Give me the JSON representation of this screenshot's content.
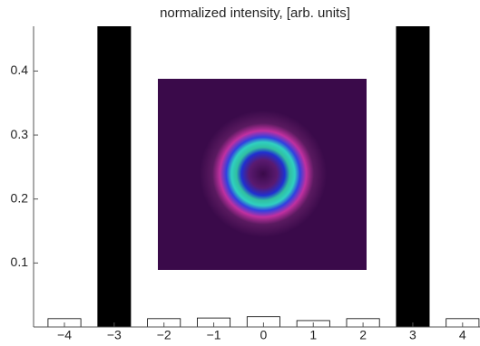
{
  "chart_data": {
    "type": "bar",
    "title": "normalized intensity, [arb. units]",
    "x": [
      -4,
      -3,
      -2,
      -1,
      0,
      1,
      2,
      3,
      4
    ],
    "values": [
      0.013,
      0.47,
      0.013,
      0.014,
      0.016,
      0.01,
      0.013,
      0.47,
      0.013
    ],
    "colors": [
      "#ffffff",
      "#000000",
      "#ffffff",
      "#ffffff",
      "#ffffff",
      "#ffffff",
      "#ffffff",
      "#000000",
      "#ffffff"
    ],
    "xlim": [
      -4.62,
      4.35
    ],
    "ylim": [
      0,
      0.47
    ],
    "xticks": [
      {
        "value": -4,
        "label": "−4"
      },
      {
        "value": -3,
        "label": "−3"
      },
      {
        "value": -2,
        "label": "−2"
      },
      {
        "value": -1,
        "label": "−1"
      },
      0,
      1,
      2,
      3,
      4
    ],
    "yticks": [
      0.1,
      0.2,
      0.3,
      0.4
    ]
  }
}
